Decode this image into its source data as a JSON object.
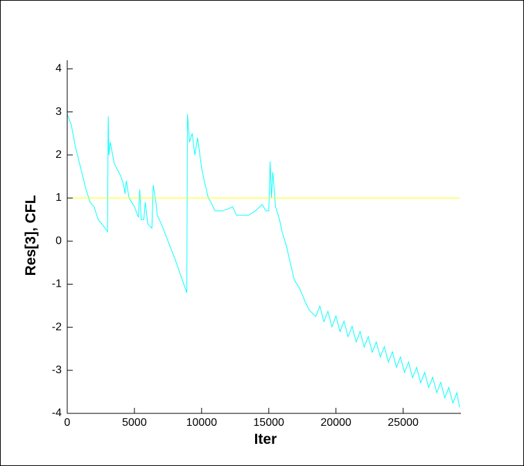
{
  "chart_data": {
    "type": "line",
    "xlabel": "Iter",
    "ylabel": "Res[3], CFL",
    "xlim": [
      0,
      29300
    ],
    "ylim": [
      -4,
      4.2
    ],
    "xticks": [
      0,
      5000,
      10000,
      15000,
      20000,
      25000
    ],
    "yticks": [
      -4,
      -3,
      -2,
      -1,
      0,
      1,
      2,
      3,
      4
    ],
    "series": [
      {
        "color": "#00ffff",
        "x": [
          0,
          300,
          600,
          1000,
          1400,
          1700,
          2000,
          2300,
          2700,
          3000,
          3050,
          3100,
          3200,
          3500,
          4000,
          4200,
          4300,
          4400,
          4600,
          5000,
          5300,
          5400,
          5500,
          5700,
          5800,
          6000,
          6300,
          6400,
          6600,
          6700,
          7000,
          8000,
          8900,
          8950,
          9100,
          9300,
          9500,
          9700,
          10000,
          10200,
          10500,
          10700,
          11000,
          11500,
          12000,
          12300,
          12600,
          13000,
          13500,
          14000,
          14500,
          14800,
          15000,
          15100,
          15200,
          15300,
          15500,
          15800,
          16000,
          16300,
          16600,
          16900,
          17300,
          17700,
          18000,
          18500,
          18800,
          19100,
          19400,
          19700,
          20000,
          20300,
          20600,
          20900,
          21200,
          21500,
          21800,
          22100,
          22400,
          22700,
          23000,
          23300,
          23600,
          23900,
          24200,
          24500,
          24800,
          25100,
          25400,
          25700,
          26000,
          26300,
          26600,
          26900,
          27200,
          27500,
          27800,
          28100,
          28400,
          28700,
          29000,
          29200
        ],
        "values": [
          2.95,
          2.7,
          2.2,
          1.7,
          1.2,
          0.9,
          0.8,
          0.5,
          0.35,
          0.22,
          2.9,
          2.0,
          2.3,
          1.8,
          1.5,
          1.3,
          1.1,
          1.4,
          1.0,
          0.8,
          0.55,
          1.2,
          0.5,
          0.5,
          0.9,
          0.4,
          0.3,
          1.3,
          0.9,
          0.6,
          0.4,
          -0.4,
          -1.2,
          2.95,
          2.3,
          2.5,
          2.0,
          2.4,
          1.7,
          1.4,
          1.0,
          0.9,
          0.7,
          0.7,
          0.75,
          0.8,
          0.6,
          0.6,
          0.6,
          0.7,
          0.85,
          0.7,
          0.7,
          1.85,
          1.0,
          1.6,
          0.8,
          0.5,
          0.2,
          -0.1,
          -0.5,
          -0.9,
          -1.1,
          -1.4,
          -1.6,
          -1.75,
          -1.51,
          -1.87,
          -1.63,
          -1.99,
          -1.74,
          -2.1,
          -1.86,
          -2.22,
          -1.98,
          -2.34,
          -2.1,
          -2.46,
          -2.22,
          -2.58,
          -2.34,
          -2.69,
          -2.45,
          -2.81,
          -2.57,
          -2.93,
          -2.69,
          -3.05,
          -2.81,
          -3.17,
          -2.93,
          -3.29,
          -3.05,
          -3.4,
          -3.16,
          -3.52,
          -3.28,
          -3.64,
          -3.4,
          -3.76,
          -3.52,
          -3.86
        ]
      },
      {
        "color": "#ffff00",
        "x": [
          0,
          29200
        ],
        "values": [
          1,
          1
        ]
      }
    ]
  }
}
